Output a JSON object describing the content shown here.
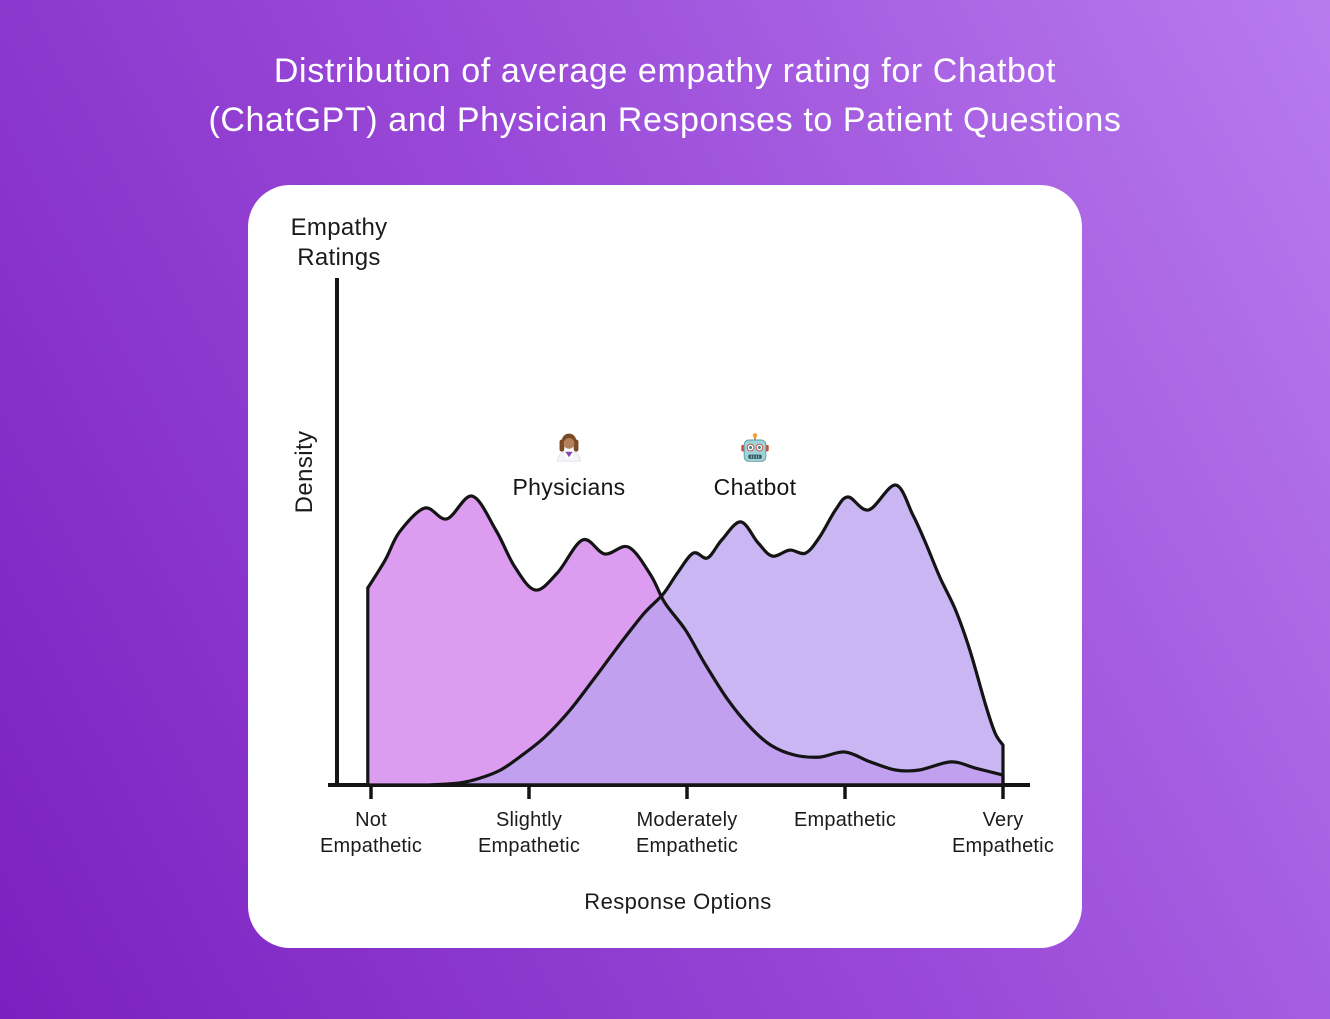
{
  "page": {
    "title_lines": [
      "Distribution of average empathy rating for Chatbot",
      "(ChatGPT) and Physician Responses to Patient Questions"
    ],
    "background_gradient": [
      "#7a20c0",
      "#9a4ad8",
      "#b87bee"
    ],
    "card_color": "#ffffff",
    "text_color": "#1b1b1b"
  },
  "chart_data": {
    "type": "area",
    "variant": "overlapping-density-curves",
    "title": "Distribution of average empathy rating for Chatbot (ChatGPT) and Physician Responses to Patient Questions",
    "xlabel": "Response Options",
    "ylabel": "Density",
    "y_axis_top_label": "Empathy Ratings",
    "categories": [
      "Not\nEmpathetic",
      "Slightly\nEmpathetic",
      "Moderately\nEmpathetic",
      "Empathetic",
      "Very\nEmpathetic"
    ],
    "x_scale_note": "x in category units: 1 = Not Empathetic ... 5 = Very Empathetic",
    "y_scale_note": "y is relative density 0-1 (no numeric ticks shown)",
    "xlim": [
      1,
      5
    ],
    "ylim": [
      0,
      1
    ],
    "grid": false,
    "legend_position": "inside-top",
    "axis_color": "#141414",
    "series": [
      {
        "name": "Physicians",
        "icon": "woman-health-worker-emoji",
        "fill": "#dc9df0",
        "fill_opacity": 1,
        "points": [
          [
            0.98,
            0.657
          ],
          [
            1.09,
            0.75
          ],
          [
            1.18,
            0.843
          ],
          [
            1.34,
            0.923
          ],
          [
            1.48,
            0.887
          ],
          [
            1.64,
            0.963
          ],
          [
            1.79,
            0.85
          ],
          [
            1.91,
            0.727
          ],
          [
            2.04,
            0.65
          ],
          [
            2.18,
            0.707
          ],
          [
            2.34,
            0.817
          ],
          [
            2.48,
            0.77
          ],
          [
            2.63,
            0.793
          ],
          [
            2.77,
            0.7
          ],
          [
            2.86,
            0.607
          ],
          [
            2.99,
            0.517
          ],
          [
            3.11,
            0.407
          ],
          [
            3.26,
            0.283
          ],
          [
            3.4,
            0.193
          ],
          [
            3.53,
            0.133
          ],
          [
            3.68,
            0.1
          ],
          [
            3.84,
            0.093
          ],
          [
            4.0,
            0.11
          ],
          [
            4.16,
            0.077
          ],
          [
            4.32,
            0.05
          ],
          [
            4.47,
            0.05
          ],
          [
            4.67,
            0.077
          ],
          [
            4.82,
            0.057
          ],
          [
            5.0,
            0.033
          ]
        ]
      },
      {
        "name": "Chatbot",
        "icon": "robot-emoji",
        "fill": "#baa1ee",
        "fill_opacity": 0.78,
        "points": [
          [
            1.37,
            0.0
          ],
          [
            1.56,
            0.007
          ],
          [
            1.69,
            0.023
          ],
          [
            1.82,
            0.05
          ],
          [
            1.94,
            0.093
          ],
          [
            2.1,
            0.16
          ],
          [
            2.26,
            0.25
          ],
          [
            2.42,
            0.36
          ],
          [
            2.58,
            0.473
          ],
          [
            2.73,
            0.573
          ],
          [
            2.85,
            0.637
          ],
          [
            2.94,
            0.707
          ],
          [
            3.04,
            0.773
          ],
          [
            3.13,
            0.757
          ],
          [
            3.22,
            0.817
          ],
          [
            3.34,
            0.877
          ],
          [
            3.45,
            0.807
          ],
          [
            3.54,
            0.763
          ],
          [
            3.65,
            0.783
          ],
          [
            3.75,
            0.773
          ],
          [
            3.84,
            0.827
          ],
          [
            3.94,
            0.917
          ],
          [
            4.02,
            0.96
          ],
          [
            4.15,
            0.917
          ],
          [
            4.32,
            1.0
          ],
          [
            4.43,
            0.9
          ],
          [
            4.51,
            0.807
          ],
          [
            4.6,
            0.693
          ],
          [
            4.7,
            0.583
          ],
          [
            4.79,
            0.45
          ],
          [
            4.89,
            0.267
          ],
          [
            4.95,
            0.173
          ],
          [
            5.0,
            0.133
          ]
        ]
      }
    ]
  }
}
